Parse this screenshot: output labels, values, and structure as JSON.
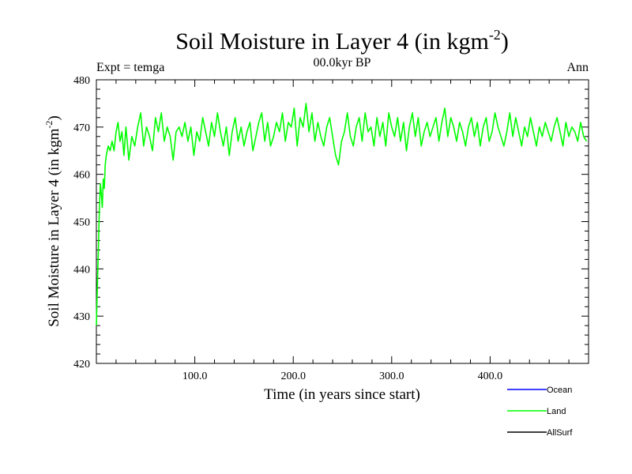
{
  "chart_data": {
    "type": "line",
    "title": "Soil Moisture in Layer 4 (in kgm",
    "title_sup": "-2",
    "title_close": ")",
    "subtitle_left": "Expt = temga",
    "subtitle_center": "00.0kyr BP",
    "subtitle_right": "Ann",
    "xlabel": "Time (in years since start)",
    "ylabel": "Soil Moisture in Layer 4 (in kgm",
    "ylabel_sup": "-2",
    "ylabel_close": ")",
    "xlim": [
      0,
      500
    ],
    "ylim": [
      420,
      480
    ],
    "xticks": [
      100,
      200,
      300,
      400
    ],
    "xtick_labels": [
      "100.0",
      "200.0",
      "300.0",
      "400.0"
    ],
    "yticks": [
      420,
      430,
      440,
      450,
      460,
      470,
      480
    ],
    "ytick_labels": [
      "420",
      "430",
      "440",
      "450",
      "460",
      "470",
      "480"
    ],
    "grid": false,
    "legend_position": "bottom-right",
    "series": [
      {
        "name": "Ocean",
        "color": "#0000ff",
        "x": [],
        "values": []
      },
      {
        "name": "Land",
        "color": "#00ff00",
        "x": [
          0,
          1,
          2,
          3,
          4,
          5,
          6,
          7,
          8,
          9,
          10,
          12,
          14,
          16,
          18,
          20,
          22,
          24,
          26,
          28,
          30,
          33,
          36,
          39,
          42,
          45,
          48,
          51,
          54,
          57,
          60,
          63,
          66,
          69,
          72,
          75,
          78,
          81,
          84,
          87,
          90,
          93,
          96,
          99,
          102,
          105,
          108,
          111,
          114,
          117,
          120,
          123,
          126,
          129,
          132,
          135,
          138,
          141,
          144,
          147,
          150,
          153,
          156,
          159,
          162,
          165,
          168,
          171,
          174,
          177,
          180,
          183,
          186,
          189,
          192,
          195,
          198,
          201,
          204,
          207,
          210,
          213,
          216,
          219,
          222,
          225,
          228,
          231,
          234,
          237,
          240,
          243,
          246,
          249,
          252,
          255,
          258,
          261,
          264,
          267,
          270,
          273,
          276,
          279,
          282,
          285,
          288,
          291,
          294,
          297,
          300,
          303,
          306,
          309,
          312,
          315,
          318,
          321,
          324,
          327,
          330,
          333,
          336,
          339,
          342,
          345,
          348,
          351,
          354,
          357,
          360,
          363,
          366,
          369,
          372,
          375,
          378,
          381,
          384,
          387,
          390,
          393,
          396,
          399,
          402,
          405,
          408,
          411,
          414,
          417,
          420,
          423,
          426,
          429,
          432,
          435,
          438,
          441,
          444,
          447,
          450,
          453,
          456,
          459,
          462,
          465,
          468,
          471,
          474,
          477,
          480,
          483,
          486,
          489,
          492,
          495,
          498
        ],
        "values": [
          428,
          436,
          444,
          452,
          458,
          456,
          453,
          459,
          457,
          462,
          464,
          466,
          465,
          467,
          465,
          469,
          471,
          467,
          469,
          464,
          470,
          463,
          468,
          466,
          470,
          473,
          466,
          470,
          468,
          465,
          472,
          469,
          473,
          467,
          470,
          468,
          463,
          469,
          470,
          468,
          471,
          467,
          470,
          464,
          469,
          467,
          472,
          469,
          466,
          471,
          468,
          473,
          469,
          466,
          470,
          464,
          469,
          472,
          467,
          470,
          466,
          469,
          471,
          465,
          468,
          471,
          473,
          467,
          471,
          466,
          468,
          471,
          469,
          473,
          467,
          471,
          470,
          474,
          466,
          472,
          470,
          475,
          469,
          473,
          467,
          471,
          468,
          466,
          470,
          472,
          468,
          464,
          462,
          467,
          469,
          473,
          468,
          466,
          470,
          472,
          467,
          473,
          469,
          470,
          466,
          472,
          468,
          471,
          466,
          473,
          470,
          468,
          472,
          467,
          471,
          465,
          470,
          473,
          468,
          472,
          466,
          469,
          471,
          468,
          470,
          472,
          467,
          471,
          474,
          468,
          472,
          470,
          467,
          471,
          469,
          466,
          470,
          472,
          468,
          471,
          466,
          470,
          472,
          467,
          469,
          473,
          470,
          468,
          466,
          469,
          473,
          468,
          472,
          469,
          466,
          470,
          468,
          472,
          469,
          466,
          470,
          468,
          471,
          469,
          467,
          470,
          472,
          469,
          466,
          471,
          468,
          470,
          469,
          467,
          471,
          468,
          467
        ]
      },
      {
        "name": "AllSurf",
        "color": "#000000",
        "x": [],
        "values": []
      }
    ]
  }
}
